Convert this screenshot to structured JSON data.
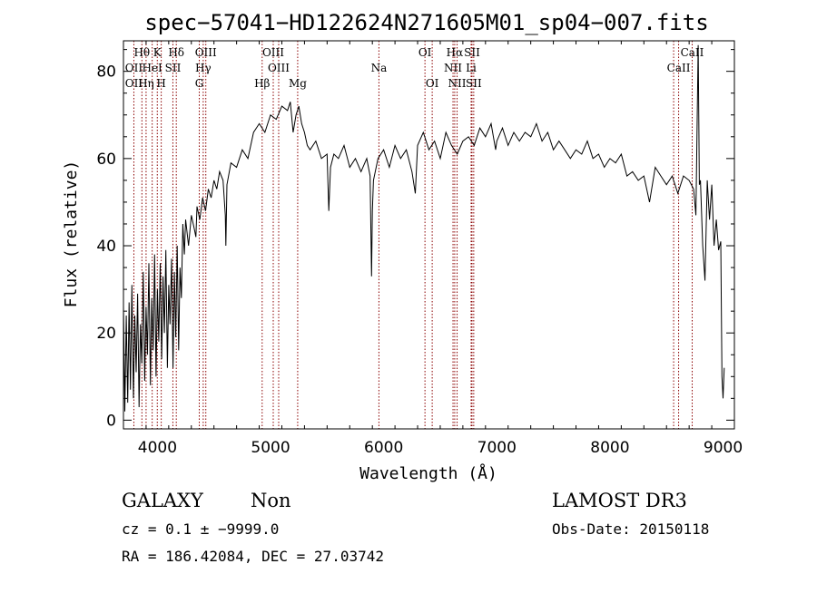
{
  "chart_data": {
    "type": "line",
    "title": "spec−57041−HD122624N271605M01_sp04−007.fits",
    "xlabel": "Wavelength (Å)",
    "ylabel": "Flux (relative)",
    "xlim": [
      3700,
      9100
    ],
    "ylim": [
      -2,
      87
    ],
    "xticks": [
      4000,
      5000,
      6000,
      7000,
      8000,
      9000
    ],
    "yticks": [
      0,
      20,
      40,
      60,
      80
    ],
    "x_minor_step": 200,
    "y_minor_step": 5,
    "series": [
      {
        "color": "#000000",
        "points": [
          [
            3700,
            26
          ],
          [
            3712,
            2
          ],
          [
            3725,
            24
          ],
          [
            3738,
            4
          ],
          [
            3750,
            27
          ],
          [
            3762,
            7
          ],
          [
            3775,
            31
          ],
          [
            3788,
            5
          ],
          [
            3800,
            24
          ],
          [
            3812,
            11
          ],
          [
            3825,
            29
          ],
          [
            3838,
            3
          ],
          [
            3850,
            22
          ],
          [
            3862,
            13
          ],
          [
            3875,
            34
          ],
          [
            3888,
            9
          ],
          [
            3900,
            26
          ],
          [
            3912,
            15
          ],
          [
            3925,
            36
          ],
          [
            3938,
            8
          ],
          [
            3950,
            28
          ],
          [
            3962,
            16
          ],
          [
            3975,
            38
          ],
          [
            3988,
            10
          ],
          [
            4000,
            30
          ],
          [
            4012,
            18
          ],
          [
            4025,
            36
          ],
          [
            4038,
            14
          ],
          [
            4050,
            33
          ],
          [
            4062,
            20
          ],
          [
            4075,
            39
          ],
          [
            4088,
            12
          ],
          [
            4100,
            31
          ],
          [
            4112,
            22
          ],
          [
            4125,
            37
          ],
          [
            4138,
            12
          ],
          [
            4150,
            34
          ],
          [
            4162,
            19
          ],
          [
            4175,
            40
          ],
          [
            4188,
            16
          ],
          [
            4200,
            35
          ],
          [
            4212,
            28
          ],
          [
            4225,
            45
          ],
          [
            4238,
            38
          ],
          [
            4250,
            46
          ],
          [
            4275,
            40
          ],
          [
            4300,
            47
          ],
          [
            4325,
            44
          ],
          [
            4340,
            42
          ],
          [
            4350,
            49
          ],
          [
            4375,
            46
          ],
          [
            4400,
            51
          ],
          [
            4425,
            48
          ],
          [
            4450,
            53
          ],
          [
            4475,
            51
          ],
          [
            4500,
            55
          ],
          [
            4525,
            53
          ],
          [
            4550,
            57
          ],
          [
            4580,
            55
          ],
          [
            4600,
            47
          ],
          [
            4605,
            40
          ],
          [
            4615,
            54
          ],
          [
            4650,
            59
          ],
          [
            4700,
            58
          ],
          [
            4750,
            62
          ],
          [
            4800,
            60
          ],
          [
            4850,
            66
          ],
          [
            4900,
            68
          ],
          [
            4950,
            66
          ],
          [
            5000,
            70
          ],
          [
            5050,
            69
          ],
          [
            5100,
            72
          ],
          [
            5150,
            71
          ],
          [
            5175,
            73
          ],
          [
            5200,
            66
          ],
          [
            5225,
            70
          ],
          [
            5250,
            72
          ],
          [
            5275,
            68
          ],
          [
            5300,
            66
          ],
          [
            5325,
            63
          ],
          [
            5350,
            62
          ],
          [
            5400,
            64
          ],
          [
            5450,
            60
          ],
          [
            5500,
            61
          ],
          [
            5515,
            48
          ],
          [
            5530,
            58
          ],
          [
            5560,
            61
          ],
          [
            5600,
            60
          ],
          [
            5650,
            63
          ],
          [
            5700,
            58
          ],
          [
            5750,
            60
          ],
          [
            5800,
            57
          ],
          [
            5850,
            60
          ],
          [
            5880,
            56
          ],
          [
            5893,
            33
          ],
          [
            5900,
            48
          ],
          [
            5910,
            55
          ],
          [
            5950,
            60
          ],
          [
            6000,
            62
          ],
          [
            6050,
            58
          ],
          [
            6100,
            63
          ],
          [
            6150,
            60
          ],
          [
            6200,
            62
          ],
          [
            6250,
            57
          ],
          [
            6280,
            52
          ],
          [
            6300,
            63
          ],
          [
            6350,
            66
          ],
          [
            6400,
            62
          ],
          [
            6450,
            64
          ],
          [
            6500,
            60
          ],
          [
            6550,
            66
          ],
          [
            6600,
            63
          ],
          [
            6650,
            61
          ],
          [
            6700,
            64
          ],
          [
            6750,
            65
          ],
          [
            6800,
            63
          ],
          [
            6850,
            67
          ],
          [
            6900,
            65
          ],
          [
            6950,
            68
          ],
          [
            6990,
            62
          ],
          [
            7000,
            64
          ],
          [
            7050,
            67
          ],
          [
            7100,
            63
          ],
          [
            7150,
            66
          ],
          [
            7200,
            64
          ],
          [
            7250,
            66
          ],
          [
            7300,
            65
          ],
          [
            7350,
            68
          ],
          [
            7400,
            64
          ],
          [
            7450,
            66
          ],
          [
            7500,
            62
          ],
          [
            7550,
            64
          ],
          [
            7600,
            62
          ],
          [
            7650,
            60
          ],
          [
            7700,
            62
          ],
          [
            7750,
            61
          ],
          [
            7800,
            64
          ],
          [
            7850,
            60
          ],
          [
            7900,
            61
          ],
          [
            7950,
            58
          ],
          [
            8000,
            60
          ],
          [
            8050,
            59
          ],
          [
            8100,
            61
          ],
          [
            8150,
            56
          ],
          [
            8200,
            57
          ],
          [
            8250,
            55
          ],
          [
            8300,
            56
          ],
          [
            8350,
            50
          ],
          [
            8400,
            58
          ],
          [
            8450,
            56
          ],
          [
            8500,
            54
          ],
          [
            8550,
            56
          ],
          [
            8600,
            52
          ],
          [
            8650,
            56
          ],
          [
            8700,
            55
          ],
          [
            8740,
            53
          ],
          [
            8760,
            47
          ],
          [
            8780,
            86
          ],
          [
            8790,
            54
          ],
          [
            8800,
            55
          ],
          [
            8820,
            40
          ],
          [
            8840,
            32
          ],
          [
            8860,
            55
          ],
          [
            8880,
            46
          ],
          [
            8900,
            54
          ],
          [
            8920,
            40
          ],
          [
            8940,
            46
          ],
          [
            8960,
            39
          ],
          [
            8980,
            41
          ],
          [
            8990,
            10
          ],
          [
            9000,
            5
          ],
          [
            9010,
            12
          ]
        ]
      }
    ],
    "spectral_lines": [
      {
        "label": "Hθ",
        "x": 3798,
        "row": 1
      },
      {
        "label": "OII",
        "x": 3727,
        "row": 2
      },
      {
        "label": "OII",
        "x": 3727,
        "row": 3
      },
      {
        "label": "Hη",
        "x": 3835,
        "row": 3
      },
      {
        "label": "HeI",
        "x": 3889,
        "row": 2
      },
      {
        "label": "K",
        "x": 3934,
        "row": 1
      },
      {
        "label": "H",
        "x": 3969,
        "row": 3
      },
      {
        "label": "Hδ",
        "x": 4102,
        "row": 1
      },
      {
        "label": "SII",
        "x": 4072,
        "row": 2
      },
      {
        "label": "OIII",
        "x": 4363,
        "row": 1
      },
      {
        "label": "Hγ",
        "x": 4340,
        "row": 2
      },
      {
        "label": "G",
        "x": 4305,
        "row": 3
      },
      {
        "label": "OIII",
        "x": 4959,
        "row": 1
      },
      {
        "label": "OIII",
        "x": 5007,
        "row": 2
      },
      {
        "label": "Hβ",
        "x": 4861,
        "row": 3
      },
      {
        "label": "Mg",
        "x": 5175,
        "row": 3
      },
      {
        "label": "Na",
        "x": 5893,
        "row": 2
      },
      {
        "label": "OI",
        "x": 6300,
        "row": 1
      },
      {
        "label": "OI",
        "x": 6364,
        "row": 3
      },
      {
        "label": "Hα",
        "x": 6563,
        "row": 1
      },
      {
        "label": "SII",
        "x": 6716,
        "row": 1
      },
      {
        "label": "NII",
        "x": 6548,
        "row": 2
      },
      {
        "label": "Li",
        "x": 6708,
        "row": 2
      },
      {
        "label": "NII",
        "x": 6584,
        "row": 3
      },
      {
        "label": "SII",
        "x": 6731,
        "row": 3
      },
      {
        "label": "CaII",
        "x": 8662,
        "row": 1
      },
      {
        "label": "CaII",
        "x": 8542,
        "row": 2
      }
    ],
    "spectral_line_positions": [
      3727,
      3798,
      3835,
      3889,
      3934,
      3969,
      4072,
      4102,
      4305,
      4340,
      4363,
      4861,
      4959,
      5007,
      5175,
      5893,
      6300,
      6364,
      6548,
      6563,
      6584,
      6708,
      6716,
      6731,
      8498,
      8542,
      8662
    ],
    "line_color": "#8b0000",
    "redshift_offset": 65
  },
  "info": {
    "class_label": "GALAXY",
    "subclass_label": "Non",
    "survey_label": "LAMOST DR3",
    "cz_text": "cz = 0.1 ± −9999.0",
    "obs_date_text": "Obs-Date: 20150118",
    "coords_text": "RA = 186.42084, DEC =  27.03742"
  }
}
